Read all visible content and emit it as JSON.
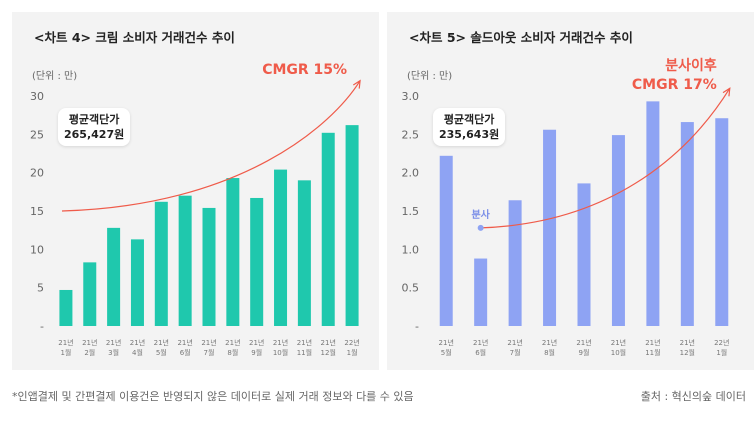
{
  "chart_data": [
    {
      "type": "bar",
      "title": "<차트 4> 크림 소비자 거래건수 추이",
      "unit_label": "(단위 : 만)",
      "y_ticks": [
        "30",
        "25",
        "20",
        "15",
        "10",
        "5",
        "-"
      ],
      "ylim": [
        0,
        30
      ],
      "x_labels": [
        [
          "21년",
          "1월"
        ],
        [
          "21년",
          "2월"
        ],
        [
          "21년",
          "3월"
        ],
        [
          "21년",
          "4월"
        ],
        [
          "21년",
          "5월"
        ],
        [
          "21년",
          "6월"
        ],
        [
          "21년",
          "7월"
        ],
        [
          "21년",
          "8월"
        ],
        [
          "21년",
          "9월"
        ],
        [
          "21년",
          "10월"
        ],
        [
          "21년",
          "11월"
        ],
        [
          "21년",
          "12월"
        ],
        [
          "22년",
          "1월"
        ]
      ],
      "values": [
        4.7,
        8.3,
        12.8,
        11.3,
        16.2,
        17.0,
        15.4,
        19.3,
        16.7,
        20.4,
        19.0,
        25.2,
        26.2
      ],
      "bar_color": "#1fc8ad",
      "annotation": {
        "label": "평균객단가",
        "value": "265,427원"
      },
      "trend": {
        "label_lines": [
          "CMGR 15%"
        ],
        "start_value": 15,
        "end_value": 32,
        "color": "#ef5b4a"
      }
    },
    {
      "type": "bar",
      "title": "<차트 5> 솔드아웃 소비자 거래건수 추이",
      "unit_label": "(단위 : 만)",
      "y_ticks": [
        "3.0",
        "2.5",
        "2.0",
        "1.5",
        "1.0",
        "0.5",
        "-"
      ],
      "ylim": [
        0,
        3.0
      ],
      "x_labels": [
        [
          "21년",
          "5월"
        ],
        [
          "21년",
          "6월"
        ],
        [
          "21년",
          "7월"
        ],
        [
          "21년",
          "8월"
        ],
        [
          "21년",
          "9월"
        ],
        [
          "21년",
          "10월"
        ],
        [
          "21년",
          "11월"
        ],
        [
          "21년",
          "12월"
        ],
        [
          "22년",
          "1월"
        ]
      ],
      "values": [
        2.22,
        0.88,
        1.64,
        2.56,
        1.86,
        2.49,
        2.93,
        2.66,
        2.71
      ],
      "bar_color": "#8ea3f3",
      "annotation": {
        "label": "평균객단가",
        "value": "235,643원"
      },
      "point_label": "분사",
      "point_value": 1.28,
      "trend": {
        "label_lines": [
          "분사이후",
          "CMGR 17%"
        ],
        "start_value": 1.28,
        "end_value": 3.1,
        "color": "#ef5b4a"
      }
    }
  ],
  "footnote": "*인앱결제 및 간편결제 이용건은 반영되지 않은 데이터로 실제 거래 정보와 다를 수 있음",
  "source": "출처 : 혁신의숲 데이터"
}
